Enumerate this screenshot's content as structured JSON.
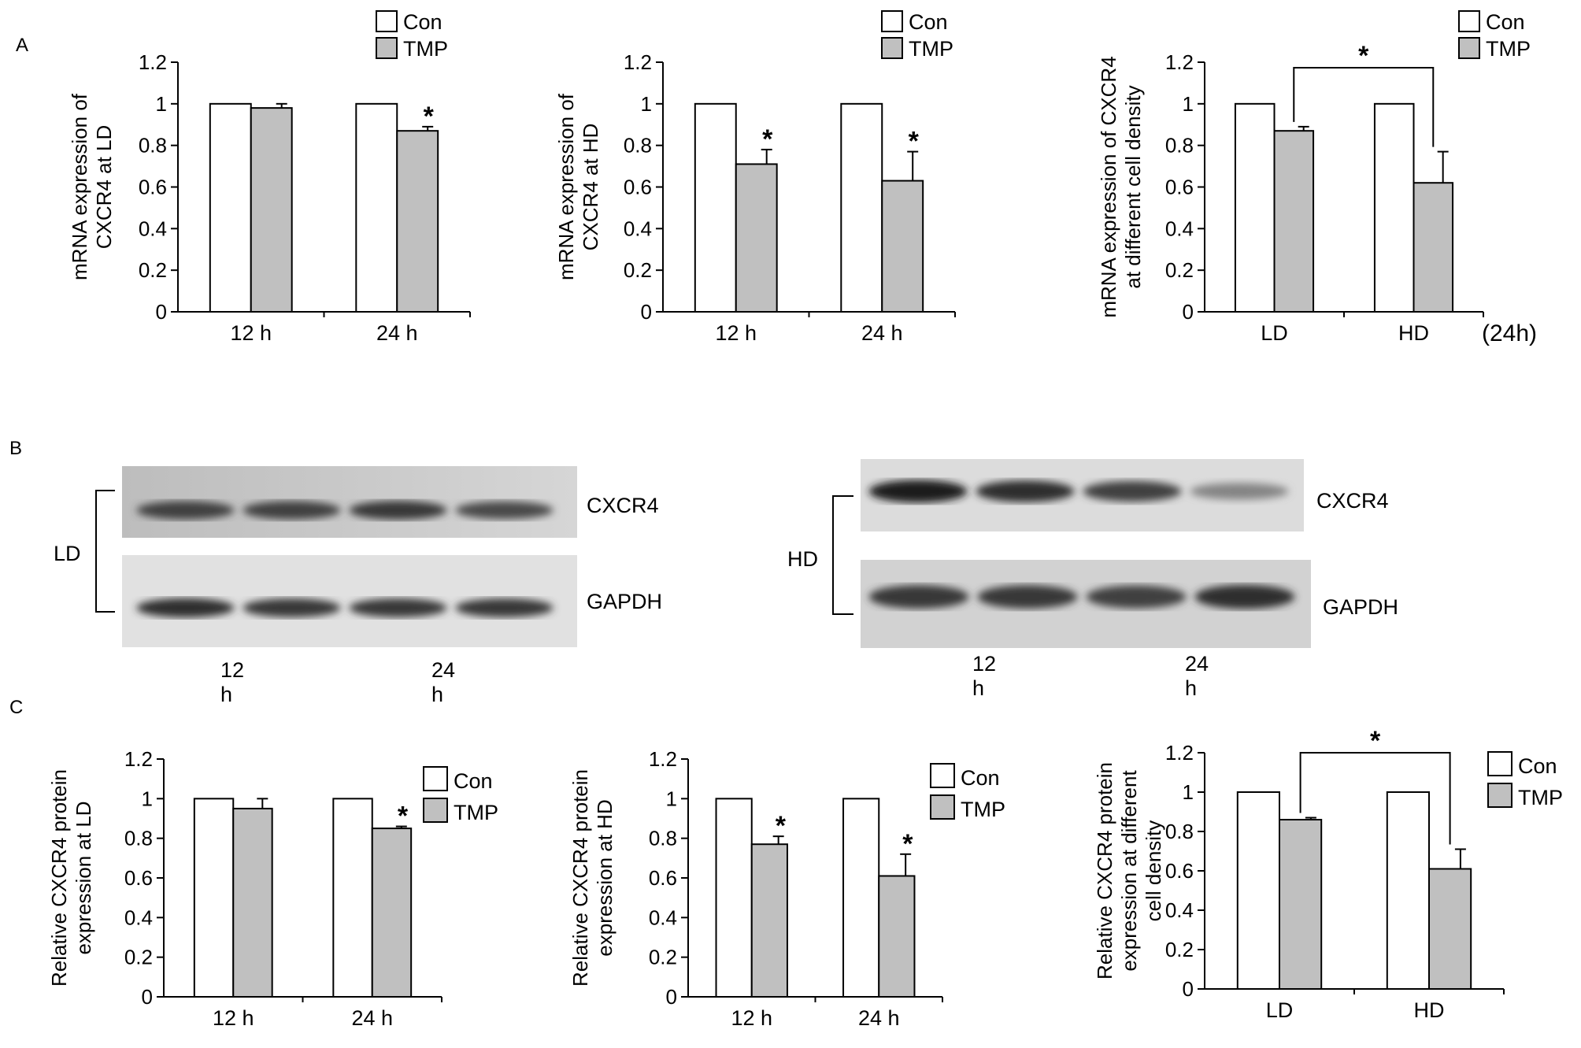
{
  "panels": {
    "a": "A",
    "b": "B",
    "c": "C"
  },
  "chart_data": [
    {
      "type": "bar",
      "panel": "A",
      "categories": [
        "12 h",
        "24 h"
      ],
      "series": [
        {
          "name": "Con",
          "values": [
            1,
            1
          ],
          "errors": [
            0,
            0
          ]
        },
        {
          "name": "TMP",
          "values": [
            0.98,
            0.87
          ],
          "errors": [
            0.02,
            0.02
          ]
        }
      ],
      "significance": [
        "",
        "*"
      ],
      "ylabel_lines": [
        "mRNA expression of",
        "CXCR4 at  LD"
      ],
      "ylim": [
        0,
        1.2
      ],
      "yticks": [
        "0",
        "0.2",
        "0.4",
        "0.6",
        "0.8",
        "1",
        "1.2"
      ],
      "axis_note": "",
      "bracket_label": "",
      "legend": [
        "Con",
        "TMP"
      ],
      "legend_position": "top-right"
    },
    {
      "type": "bar",
      "panel": "A",
      "categories": [
        "12 h",
        "24 h"
      ],
      "series": [
        {
          "name": "Con",
          "values": [
            1,
            1
          ],
          "errors": [
            0,
            0
          ]
        },
        {
          "name": "TMP",
          "values": [
            0.71,
            0.63
          ],
          "errors": [
            0.07,
            0.14
          ]
        }
      ],
      "significance": [
        "*",
        "*"
      ],
      "ylabel_lines": [
        "mRNA expression of",
        "CXCR4 at  HD"
      ],
      "ylim": [
        0,
        1.2
      ],
      "yticks": [
        "0",
        "0.2",
        "0.4",
        "0.6",
        "0.8",
        "1",
        "1.2"
      ],
      "axis_note": "",
      "bracket_label": "",
      "legend": [
        "Con",
        "TMP"
      ],
      "legend_position": "top-right"
    },
    {
      "type": "bar",
      "panel": "A",
      "categories": [
        "LD",
        "HD"
      ],
      "series": [
        {
          "name": "Con",
          "values": [
            1,
            1
          ],
          "errors": [
            0,
            0
          ]
        },
        {
          "name": "TMP",
          "values": [
            0.87,
            0.62
          ],
          "errors": [
            0.02,
            0.15
          ]
        }
      ],
      "significance": [
        "",
        ""
      ],
      "ylabel_lines": [
        "mRNA expression of CXCR4",
        "at different cell density"
      ],
      "ylim": [
        0,
        1.2
      ],
      "yticks": [
        "0",
        "0.2",
        "0.4",
        "0.6",
        "0.8",
        "1",
        "1.2"
      ],
      "axis_note": "(24h)",
      "bracket_label": "*",
      "legend": [
        "Con",
        "TMP"
      ],
      "legend_position": "top-right"
    },
    {
      "type": "bar",
      "panel": "C",
      "categories": [
        "12 h",
        "24 h"
      ],
      "series": [
        {
          "name": "Con",
          "values": [
            1,
            1
          ],
          "errors": [
            0,
            0
          ]
        },
        {
          "name": "TMP",
          "values": [
            0.95,
            0.85
          ],
          "errors": [
            0.05,
            0.01
          ]
        }
      ],
      "significance": [
        "",
        "*"
      ],
      "ylabel_lines": [
        "Relative CXCR4 protein",
        "expression  at  LD"
      ],
      "ylim": [
        0,
        1.2
      ],
      "yticks": [
        "0",
        "0.2",
        "0.4",
        "0.6",
        "0.8",
        "1",
        "1.2"
      ],
      "axis_note": "",
      "bracket_label": "",
      "legend": [
        "Con",
        "TMP"
      ],
      "legend_position": "right"
    },
    {
      "type": "bar",
      "panel": "C",
      "categories": [
        "12 h",
        "24 h"
      ],
      "series": [
        {
          "name": "Con",
          "values": [
            1,
            1
          ],
          "errors": [
            0,
            0
          ]
        },
        {
          "name": "TMP",
          "values": [
            0.77,
            0.61
          ],
          "errors": [
            0.04,
            0.11
          ]
        }
      ],
      "significance": [
        "*",
        "*"
      ],
      "ylabel_lines": [
        "Relative CXCR4 protein",
        "expression  at  HD"
      ],
      "ylim": [
        0,
        1.2
      ],
      "yticks": [
        "0",
        "0.2",
        "0.4",
        "0.6",
        "0.8",
        "1",
        "1.2"
      ],
      "axis_note": "",
      "bracket_label": "",
      "legend": [
        "Con",
        "TMP"
      ],
      "legend_position": "right"
    },
    {
      "type": "bar",
      "panel": "C",
      "categories": [
        "LD",
        "HD"
      ],
      "series": [
        {
          "name": "Con",
          "values": [
            1,
            1
          ],
          "errors": [
            0,
            0
          ]
        },
        {
          "name": "TMP",
          "values": [
            0.86,
            0.61
          ],
          "errors": [
            0.01,
            0.1
          ]
        }
      ],
      "significance": [
        "",
        ""
      ],
      "ylabel_lines": [
        "Relative CXCR4 protein",
        "expression  at different",
        "cell density"
      ],
      "ylim": [
        0,
        1.2
      ],
      "yticks": [
        "0",
        "0.2",
        "0.4",
        "0.6",
        "0.8",
        "1",
        "1.2"
      ],
      "axis_note": "",
      "bracket_label": "*",
      "legend": [
        "Con",
        "TMP"
      ],
      "legend_position": "right"
    }
  ],
  "blots": [
    {
      "density": "LD",
      "bands": [
        "CXCR4",
        "GAPDH"
      ],
      "lanes": [
        "12 h",
        "24 h"
      ],
      "band_intensity": {
        "CXCR4": [
          0.8,
          0.8,
          0.85,
          0.75
        ],
        "GAPDH": [
          0.9,
          0.85,
          0.85,
          0.85
        ]
      }
    },
    {
      "density": "HD",
      "bands": [
        "CXCR4",
        "GAPDH"
      ],
      "lanes": [
        "12 h",
        "24 h"
      ],
      "band_intensity": {
        "CXCR4": [
          1.0,
          0.9,
          0.8,
          0.4
        ],
        "GAPDH": [
          0.85,
          0.85,
          0.8,
          0.9
        ]
      }
    }
  ]
}
